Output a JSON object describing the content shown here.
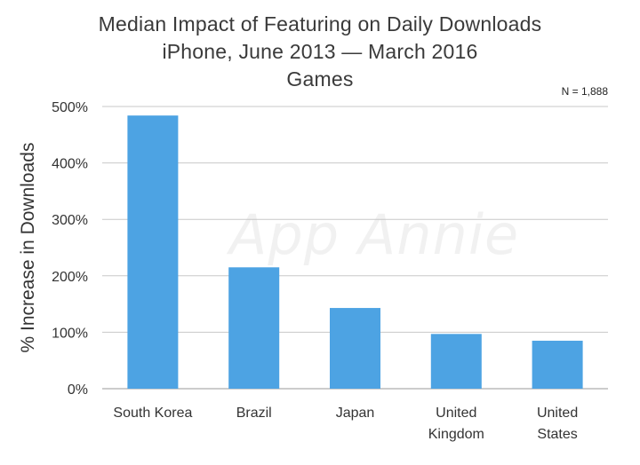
{
  "chart_data": {
    "type": "bar",
    "title": "Median Impact of Featuring on Daily Downloads",
    "subtitle": "iPhone, June 2013 — March 2016",
    "category_label": "Games",
    "note": "N = 1,888",
    "watermark": "App Annie",
    "ylabel": "% Increase in Downloads",
    "xlabel": "",
    "ylim": [
      0,
      500
    ],
    "yticks": [
      "0%",
      "100%",
      "200%",
      "300%",
      "400%",
      "500%"
    ],
    "ytick_values": [
      0,
      100,
      200,
      300,
      400,
      500
    ],
    "categories": [
      [
        "South Korea"
      ],
      [
        "Brazil"
      ],
      [
        "Japan"
      ],
      [
        "United",
        "Kingdom"
      ],
      [
        "United",
        "States"
      ]
    ],
    "values": [
      484,
      215,
      143,
      97,
      85
    ],
    "bar_color": "#4da3e3",
    "grid": true,
    "legend": "none"
  }
}
